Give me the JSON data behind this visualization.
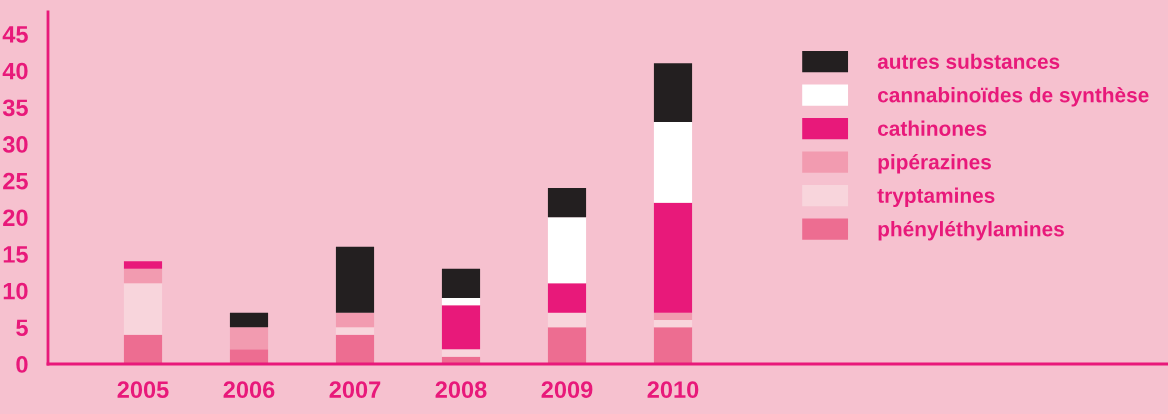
{
  "chart_data": {
    "type": "bar",
    "stacked": true,
    "categories": [
      "2005",
      "2006",
      "2007",
      "2008",
      "2009",
      "2010"
    ],
    "series": [
      {
        "name": "phényléthylamines",
        "color": "#ed6d91",
        "values": [
          4,
          2,
          4,
          1,
          5,
          5
        ]
      },
      {
        "name": "tryptamines",
        "color": "#f8d5dc",
        "values": [
          7,
          0,
          1,
          1,
          2,
          1
        ]
      },
      {
        "name": "pipérazines",
        "color": "#f29bb0",
        "values": [
          2,
          3,
          2,
          0,
          0,
          1
        ]
      },
      {
        "name": "cathinones",
        "color": "#e8197a",
        "values": [
          1,
          0,
          0,
          6,
          4,
          15
        ]
      },
      {
        "name": "cannabinoïdes de synthèse",
        "color": "#ffffff",
        "values": [
          0,
          0,
          0,
          1,
          9,
          11
        ]
      },
      {
        "name": "autres substances",
        "color": "#231f20",
        "values": [
          0,
          2,
          9,
          4,
          4,
          8
        ]
      }
    ],
    "ylim": [
      0,
      48
    ],
    "yticks": [
      0,
      5,
      10,
      15,
      20,
      25,
      30,
      35,
      40,
      45
    ],
    "grid": false,
    "legend": "right"
  }
}
